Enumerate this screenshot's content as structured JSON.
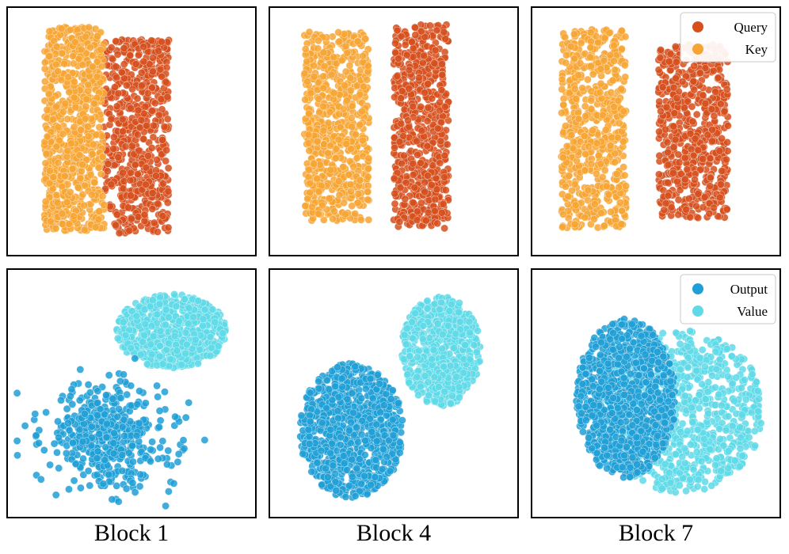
{
  "figure": {
    "columns": [
      "Block 1",
      "Block 4",
      "Block 7"
    ]
  },
  "chart_data": [
    {
      "type": "scatter",
      "row": "attention",
      "panel": "Block 1",
      "title": "",
      "xlabel": "",
      "ylabel": "",
      "grid": false,
      "axes_ticks": false,
      "legend": null,
      "series": [
        {
          "name": "Query",
          "color": "#D64F1C",
          "n_points": 650,
          "cluster": {
            "shape": "rect",
            "center": [
              0.52,
              0.52
            ],
            "spread": [
              0.13,
              0.39
            ]
          }
        },
        {
          "name": "Key",
          "color": "#F7A532",
          "n_points": 780,
          "cluster": {
            "shape": "rect",
            "center": [
              0.27,
              0.49
            ],
            "spread": [
              0.12,
              0.41
            ]
          }
        }
      ]
    },
    {
      "type": "scatter",
      "row": "attention",
      "panel": "Block 4",
      "title": "",
      "xlabel": "",
      "ylabel": "",
      "grid": false,
      "axes_ticks": false,
      "legend": null,
      "series": [
        {
          "name": "Query",
          "color": "#D64F1C",
          "n_points": 650,
          "cluster": {
            "shape": "rect",
            "center": [
              0.61,
              0.48
            ],
            "spread": [
              0.11,
              0.41
            ]
          }
        },
        {
          "name": "Key",
          "color": "#F7A532",
          "n_points": 700,
          "cluster": {
            "shape": "rect",
            "center": [
              0.27,
              0.48
            ],
            "spread": [
              0.13,
              0.38
            ]
          }
        }
      ]
    },
    {
      "type": "scatter",
      "row": "attention",
      "panel": "Block 7",
      "title": "",
      "xlabel": "",
      "ylabel": "",
      "grid": false,
      "axes_ticks": false,
      "legend": {
        "position": "top-right",
        "entries": [
          "Query",
          "Key"
        ]
      },
      "series": [
        {
          "name": "Query",
          "color": "#D64F1C",
          "n_points": 650,
          "cluster": {
            "shape": "rect",
            "center": [
              0.65,
              0.5
            ],
            "spread": [
              0.14,
              0.35
            ]
          }
        },
        {
          "name": "Key",
          "color": "#F7A532",
          "n_points": 650,
          "cluster": {
            "shape": "rect",
            "center": [
              0.25,
              0.49
            ],
            "spread": [
              0.13,
              0.4
            ]
          }
        }
      ]
    },
    {
      "type": "scatter",
      "row": "value",
      "panel": "Block 1",
      "title": "",
      "xlabel": "",
      "ylabel": "",
      "grid": false,
      "axes_ticks": false,
      "legend": null,
      "series": [
        {
          "name": "Value",
          "color": "#5ED9E8",
          "n_points": 700,
          "cluster": {
            "shape": "ellipse",
            "center": [
              0.66,
              0.25
            ],
            "spread": [
              0.22,
              0.15
            ]
          }
        },
        {
          "name": "Output",
          "color": "#1F9FD6",
          "n_points": 480,
          "cluster": {
            "shape": "gauss",
            "center": [
              0.4,
              0.67
            ],
            "spread": [
              0.13,
              0.1
            ]
          }
        }
      ]
    },
    {
      "type": "scatter",
      "row": "value",
      "panel": "Block 4",
      "title": "",
      "xlabel": "",
      "ylabel": "",
      "grid": false,
      "axes_ticks": false,
      "legend": null,
      "series": [
        {
          "name": "Value",
          "color": "#5ED9E8",
          "n_points": 650,
          "cluster": {
            "shape": "ellipse",
            "center": [
              0.69,
              0.33
            ],
            "spread": [
              0.16,
              0.22
            ]
          }
        },
        {
          "name": "Output",
          "color": "#1F9FD6",
          "n_points": 950,
          "cluster": {
            "shape": "ellipse",
            "center": [
              0.33,
              0.65
            ],
            "spread": [
              0.21,
              0.27
            ]
          }
        }
      ]
    },
    {
      "type": "scatter",
      "row": "value",
      "panel": "Block 7",
      "title": "",
      "xlabel": "",
      "ylabel": "",
      "grid": false,
      "axes_ticks": false,
      "legend": {
        "position": "top-right",
        "entries": [
          "Output",
          "Value"
        ]
      },
      "series": [
        {
          "name": "Value",
          "color": "#5ED9E8",
          "n_points": 900,
          "cluster": {
            "shape": "ellipse",
            "center": [
              0.6,
              0.57
            ],
            "spread": [
              0.33,
              0.33
            ]
          }
        },
        {
          "name": "Output",
          "color": "#1F9FD6",
          "n_points": 1050,
          "cluster": {
            "shape": "ellipse",
            "center": [
              0.38,
              0.52
            ],
            "spread": [
              0.2,
              0.32
            ]
          }
        }
      ]
    }
  ]
}
